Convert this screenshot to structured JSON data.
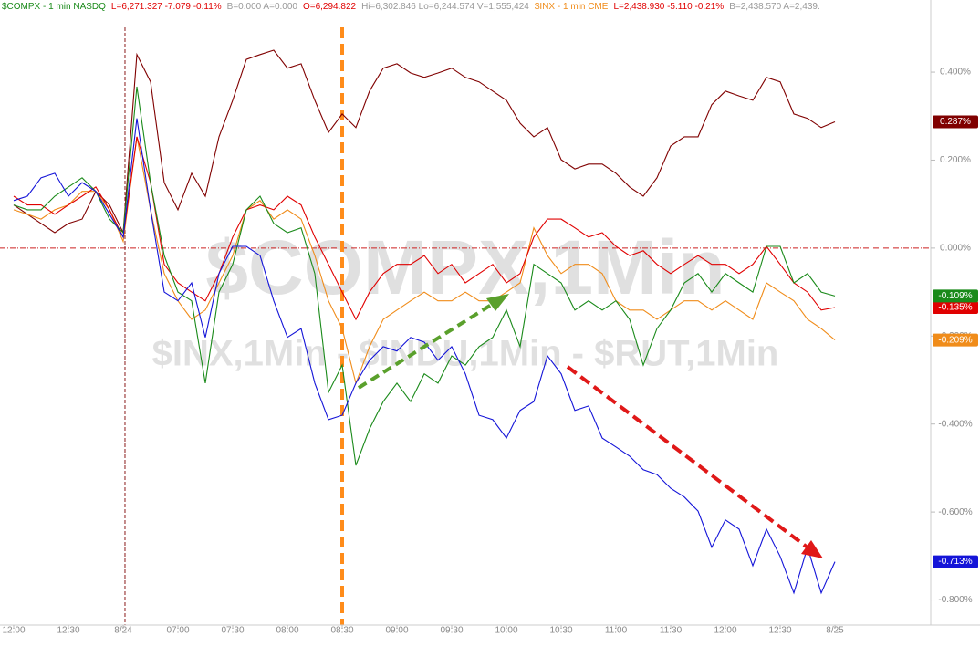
{
  "chart_data": {
    "type": "line",
    "header": [
      {
        "text": "$COMPX - 1 min  NASDQ",
        "color": "#1a8a1a"
      },
      {
        "text": "L=6,271.327  -7.079  -0.11%",
        "color": "#e00000"
      },
      {
        "text": "B=0.000  A=0.000",
        "color": "#999999"
      },
      {
        "text": "O=6,294.822",
        "color": "#e00000"
      },
      {
        "text": "Hi=6,302.846  Lo=6,244.574  V=1,555,424",
        "color": "#999999"
      },
      {
        "text": "$INX - 1 min  CME",
        "color": "#f08c1a"
      },
      {
        "text": "L=2,438.930  -5.110  -0.21%",
        "color": "#e00000"
      },
      {
        "text": "B=2,438.570  A=2,439.",
        "color": "#999999"
      }
    ],
    "watermark": [
      "$COMPX,1Min",
      "$INX,1Min - $INDU,1Min - $RUT,1Min"
    ],
    "x": [
      0,
      0.25,
      0.5,
      0.75,
      1,
      1.25,
      1.5,
      1.75,
      2,
      2.25,
      2.5,
      2.75,
      3,
      3.25,
      3.5,
      3.75,
      4,
      4.25,
      4.5,
      4.75,
      5,
      5.25,
      5.5,
      5.75,
      6,
      6.25,
      6.5,
      6.75,
      7,
      7.25,
      7.5,
      7.75,
      8,
      8.25,
      8.5,
      8.75,
      9,
      9.25,
      9.5,
      9.75,
      10,
      10.25,
      10.5,
      10.75,
      11,
      11.25,
      11.5,
      11.75,
      12,
      12.25,
      12.5,
      12.75,
      13,
      13.25,
      13.5,
      13.75,
      14,
      14.25,
      14.5,
      14.75,
      15
    ],
    "xlim": [
      -0.25,
      16.75
    ],
    "xticks": [
      {
        "value": 0,
        "label": "12:00"
      },
      {
        "value": 1,
        "label": "12:30"
      },
      {
        "value": 2,
        "label": "8/24"
      },
      {
        "value": 3,
        "label": "07:00"
      },
      {
        "value": 4,
        "label": "07:30"
      },
      {
        "value": 5,
        "label": "08:00"
      },
      {
        "value": 6,
        "label": "08:30"
      },
      {
        "value": 7,
        "label": "09:00"
      },
      {
        "value": 8,
        "label": "09:30"
      },
      {
        "value": 9,
        "label": "10:00"
      },
      {
        "value": 10,
        "label": "10:30"
      },
      {
        "value": 11,
        "label": "11:00"
      },
      {
        "value": 12,
        "label": "11:30"
      },
      {
        "value": 13,
        "label": "12:00"
      },
      {
        "value": 14,
        "label": "12:30"
      },
      {
        "value": 15,
        "label": "8/25"
      }
    ],
    "ylim": [
      -0.857,
      0.564
    ],
    "yticks": [
      {
        "value": 0.4,
        "label": "0.400%"
      },
      {
        "value": 0.2,
        "label": "0.200%"
      },
      {
        "value": 0,
        "label": "0.000%"
      },
      {
        "value": -0.2,
        "label": "-0.200%"
      },
      {
        "value": -0.4,
        "label": "-0.400%"
      },
      {
        "value": -0.6,
        "label": "-0.600%"
      },
      {
        "value": -0.8,
        "label": "-0.800%"
      }
    ],
    "grid": false,
    "hlines": [
      {
        "y": 0,
        "color": "#cc2020"
      }
    ],
    "vlines": [
      {
        "x": 2.033,
        "color": "#8b1a1a",
        "width": 1
      },
      {
        "x": 6,
        "color": "#ff8c1a",
        "width": 4
      }
    ],
    "series": [
      {
        "color": "#800000",
        "last": {
          "value": 0.287,
          "label": "0.287%"
        },
        "values": [
          0.098,
          0.077,
          0.056,
          0.035,
          0.056,
          0.066,
          0.129,
          0.098,
          0.035,
          0.44,
          0.378,
          0.149,
          0.087,
          0.17,
          0.118,
          0.253,
          0.336,
          0.429,
          0.44,
          0.45,
          0.409,
          0.419,
          0.336,
          0.263,
          0.305,
          0.274,
          0.357,
          0.409,
          0.419,
          0.398,
          0.388,
          0.398,
          0.409,
          0.388,
          0.378,
          0.357,
          0.336,
          0.284,
          0.253,
          0.274,
          0.201,
          0.18,
          0.191,
          0.191,
          0.17,
          0.139,
          0.118,
          0.16,
          0.232,
          0.253,
          0.253,
          0.326,
          0.357,
          0.346,
          0.336,
          0.388,
          0.378,
          0.305,
          0.295,
          0.274,
          0.287
        ]
      },
      {
        "color": "#f08c1a",
        "last": {
          "value": -0.209,
          "label": "-0.209%"
        },
        "values": [
          0.087,
          0.077,
          0.066,
          0.087,
          0.098,
          0.129,
          0.129,
          0.087,
          0.015,
          0.253,
          0.087,
          -0.058,
          -0.12,
          -0.162,
          -0.141,
          -0.079,
          -0.017,
          0.087,
          0.108,
          0.066,
          0.087,
          0.066,
          -0.017,
          -0.12,
          -0.183,
          -0.307,
          -0.224,
          -0.162,
          -0.141,
          -0.12,
          -0.1,
          -0.12,
          -0.12,
          -0.1,
          -0.12,
          -0.12,
          -0.1,
          -0.079,
          0.046,
          -0.017,
          -0.058,
          -0.037,
          -0.037,
          -0.058,
          -0.12,
          -0.141,
          -0.141,
          -0.162,
          -0.141,
          -0.12,
          -0.12,
          -0.141,
          -0.12,
          -0.141,
          -0.162,
          -0.079,
          -0.1,
          -0.12,
          -0.162,
          -0.183,
          -0.209
        ]
      },
      {
        "color": "#e00000",
        "last": {
          "value": -0.135,
          "label": "-0.135%"
        },
        "values": [
          0.118,
          0.098,
          0.098,
          0.077,
          0.098,
          0.118,
          0.139,
          0.087,
          0.025,
          0.253,
          0.149,
          -0.037,
          -0.079,
          -0.1,
          -0.12,
          -0.058,
          0.025,
          0.087,
          0.098,
          0.087,
          0.118,
          0.098,
          0.025,
          -0.037,
          -0.1,
          -0.162,
          -0.1,
          -0.058,
          -0.037,
          -0.037,
          -0.017,
          -0.058,
          -0.037,
          -0.079,
          -0.058,
          -0.037,
          -0.079,
          -0.058,
          0.025,
          0.066,
          0.066,
          0.046,
          0.025,
          0.035,
          0.004,
          -0.017,
          -0.006,
          -0.037,
          -0.058,
          -0.037,
          -0.017,
          -0.037,
          -0.037,
          -0.058,
          -0.037,
          0.004,
          -0.037,
          -0.079,
          -0.1,
          -0.141,
          -0.135
        ]
      },
      {
        "color": "#1a8a1a",
        "last": {
          "value": -0.109,
          "label": "-0.109%"
        },
        "values": [
          0.098,
          0.087,
          0.087,
          0.118,
          0.139,
          0.16,
          0.129,
          0.066,
          0.035,
          0.367,
          0.149,
          -0.017,
          -0.1,
          -0.12,
          -0.307,
          -0.1,
          -0.037,
          0.087,
          0.118,
          0.056,
          0.035,
          0.046,
          -0.058,
          -0.328,
          -0.266,
          -0.494,
          -0.411,
          -0.349,
          -0.307,
          -0.349,
          -0.286,
          -0.307,
          -0.245,
          -0.266,
          -0.224,
          -0.203,
          -0.141,
          -0.224,
          -0.037,
          -0.058,
          -0.079,
          -0.141,
          -0.12,
          -0.141,
          -0.12,
          -0.162,
          -0.266,
          -0.183,
          -0.141,
          -0.079,
          -0.058,
          -0.1,
          -0.058,
          -0.079,
          -0.1,
          0.004,
          0.004,
          -0.079,
          -0.058,
          -0.1,
          -0.109
        ]
      },
      {
        "color": "#1414d8",
        "last": {
          "value": -0.713,
          "label": "-0.713%"
        },
        "values": [
          0.108,
          0.118,
          0.16,
          0.17,
          0.118,
          0.149,
          0.129,
          0.077,
          0.025,
          0.295,
          0.087,
          -0.1,
          -0.12,
          -0.079,
          -0.203,
          -0.058,
          0.004,
          0.004,
          -0.017,
          -0.12,
          -0.203,
          -0.183,
          -0.307,
          -0.39,
          -0.38,
          -0.307,
          -0.255,
          -0.224,
          -0.234,
          -0.203,
          -0.214,
          -0.255,
          -0.224,
          -0.286,
          -0.38,
          -0.39,
          -0.432,
          -0.369,
          -0.349,
          -0.245,
          -0.286,
          -0.369,
          -0.359,
          -0.432,
          -0.452,
          -0.473,
          -0.504,
          -0.515,
          -0.546,
          -0.566,
          -0.598,
          -0.68,
          -0.618,
          -0.639,
          -0.722,
          -0.639,
          -0.701,
          -0.784,
          -0.68,
          -0.784,
          -0.713
        ]
      }
    ]
  }
}
